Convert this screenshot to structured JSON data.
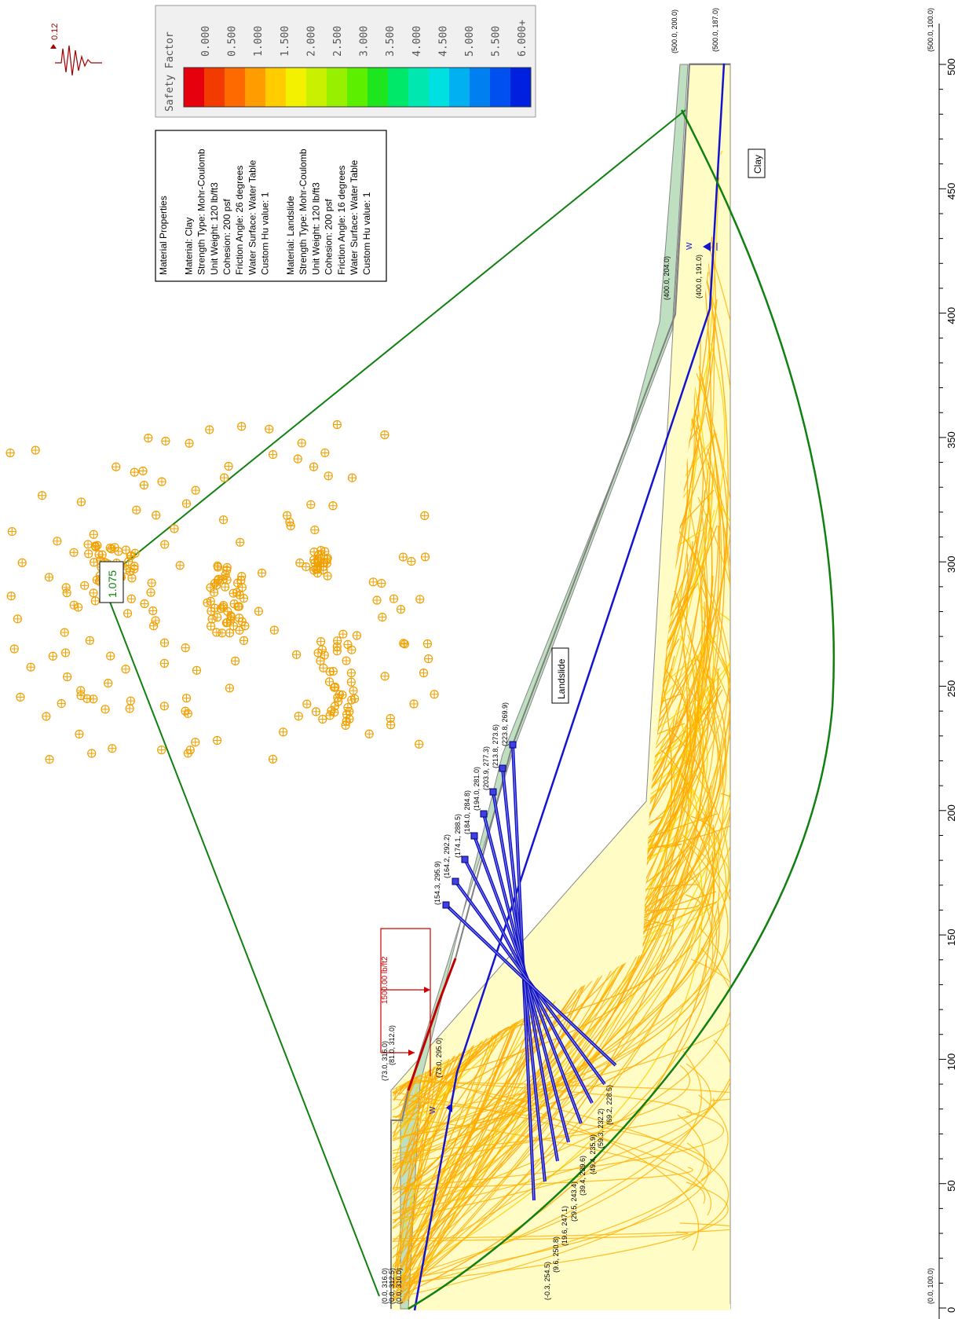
{
  "legend": {
    "title": "Safety Factor",
    "ticks": [
      "0.000",
      "0.500",
      "1.000",
      "1.500",
      "2.000",
      "2.500",
      "3.000",
      "3.500",
      "4.000",
      "4.500",
      "5.000",
      "5.500",
      "6.000+"
    ],
    "colors": [
      "#e6000e",
      "#f23b00",
      "#ff6a00",
      "#ff9d00",
      "#ffcc00",
      "#f3f000",
      "#c8f000",
      "#96f000",
      "#5cf000",
      "#1ee61e",
      "#00e86a",
      "#00e8b0",
      "#00e0e0",
      "#00b0f0",
      "#0080f0",
      "#0050f0",
      "#0020e0"
    ]
  },
  "seismic": {
    "value": "0.12"
  },
  "material_box": {
    "lines": [
      "Material Properties",
      "",
      "Material: Clay",
      "Strength Type: Mohr-Coulomb",
      "Unit Weight: 120 lb/ft3",
      "Cohesion: 200 psf",
      "Friction Angle: 26 degrees",
      "Water Surface: Water Table",
      "Custom Hu value: 1",
      "",
      "Material: Landslide",
      "Strength Type: Mohr-Coulomb",
      "Unit Weight: 120 lb/ft3",
      "Cohesion: 200 psf",
      "Friction Angle: 16 degrees",
      "Water Surface: Water Table",
      "Custom Hu value: 1"
    ]
  },
  "min_fs": "1.075",
  "labels": {
    "landslide": "Landslide",
    "clay": "Clay",
    "load": "1500.00 lb/ft2",
    "water": "W"
  },
  "axis": {
    "ticks": [
      "0",
      "50",
      "100",
      "150",
      "200",
      "250",
      "300",
      "350",
      "400",
      "450",
      "500"
    ]
  },
  "coords": {
    "left_top": "(0.0, 316.0)",
    "left_2": "(0.0, 312.5)",
    "left_3": "(0.0, 310.0)",
    "p73": "(73.0, 316.0)",
    "p81": "(81.0, 312.0)",
    "p73w": "(73.0, 295.0)",
    "p154": "(154.3, 295.9)",
    "p164": "(164.2, 292.2)",
    "p174": "(174.1, 288.5)",
    "p184": "(184.0, 284.8)",
    "p194": "(194.0, 281.0)",
    "p203": "(203.9, 277.3)",
    "p213": "(213.8, 273.6)",
    "p223": "(223.8, 269.9)",
    "b1": "(-0.3, 254.5)",
    "b2": "(9.6, 250.8)",
    "b3": "(19.6, 247.1)",
    "b4": "(29.5, 243.4)",
    "b5": "(39.4, 239.6)",
    "b6": "(49.4, 235.9)",
    "b7": "(59.3, 232.2)",
    "b8": "(69.2, 228.5)",
    "p400": "(400.0, 204.0)",
    "p400w": "(400.0, 191.0)",
    "p500": "(500.0, 200.0)",
    "p500w": "(500.0, 187.0)",
    "p500b": "(500.0, 100.0)",
    "p0b": "(0.0, 100.0)"
  }
}
